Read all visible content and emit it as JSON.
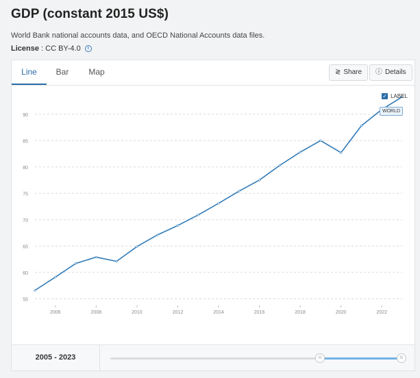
{
  "header": {
    "title": "GDP (constant 2015 US$)",
    "source": "World Bank national accounts data, and OECD National Accounts data files.",
    "license_label": "License",
    "license_value": " : CC BY-4.0",
    "info_icon": "info-icon"
  },
  "tabs": [
    {
      "label": "Line",
      "active": true
    },
    {
      "label": "Bar",
      "active": false
    },
    {
      "label": "Map",
      "active": false
    }
  ],
  "toolbar": {
    "share_label": "Share",
    "share_icon": "share-icon",
    "details_label": "Details",
    "details_icon": "info-icon"
  },
  "legend": {
    "label": "LABEL",
    "checked": true
  },
  "tooltip": {
    "label": "WORLD"
  },
  "footer": {
    "range_label": "2005 - 2023",
    "range_start_fraction": 0.72,
    "range_end_fraction": 1.0
  },
  "colors": {
    "line": "#2f7ab8",
    "accent": "#2b6ca8",
    "grid": "#d8dadc"
  },
  "chart_data": {
    "type": "line",
    "series": [
      {
        "name": "WORLD",
        "x": [
          2005,
          2006,
          2007,
          2008,
          2009,
          2010,
          2011,
          2012,
          2013,
          2014,
          2015,
          2016,
          2017,
          2018,
          2019,
          2020,
          2021,
          2022,
          2023
        ],
        "values": [
          56.6,
          59.1,
          61.7,
          62.9,
          62.1,
          64.9,
          67.1,
          68.9,
          70.9,
          73.1,
          75.4,
          77.5,
          80.3,
          82.8,
          85.0,
          82.7,
          87.8,
          90.9,
          93.3
        ]
      }
    ],
    "y_ticks": [
      55,
      60,
      65,
      70,
      75,
      80,
      85,
      90
    ],
    "x_ticks": [
      2006,
      2008,
      2010,
      2012,
      2014,
      2016,
      2018,
      2020,
      2022
    ],
    "ylim": [
      54,
      94
    ],
    "xlim": [
      2005,
      2023
    ],
    "grid": "horizontal-dashed",
    "legend_position": "top-right"
  }
}
